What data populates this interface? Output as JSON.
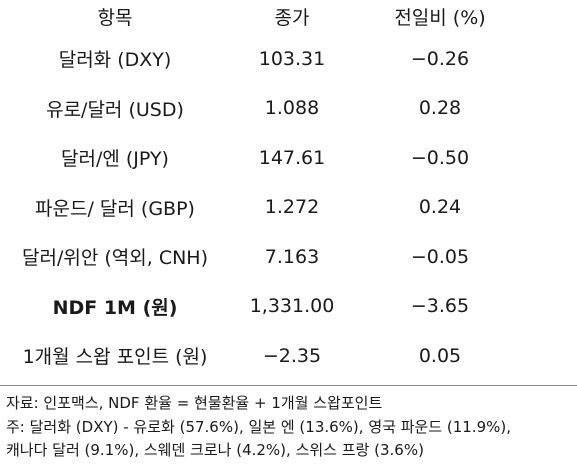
{
  "headers": [
    "항목",
    "종가",
    "전일비 (%)"
  ],
  "rows": [
    {
      "item": "달러화 (DXY)",
      "close": "103.31",
      "change": "−0.26",
      "bold": false
    },
    {
      "item": "유로/달러 (USD)",
      "close": "1.088",
      "change": "0.28",
      "bold": false
    },
    {
      "item": "달러/엔 (JPY)",
      "close": "147.61",
      "change": "−0.50",
      "bold": false
    },
    {
      "item": "파운드/ 달러 (GBP)",
      "close": "1.272",
      "change": "0.24",
      "bold": false
    },
    {
      "item": "달러/위안 (역외, CNH)",
      "close": "7.163",
      "change": "−0.05",
      "bold": false
    },
    {
      "item": "NDF 1M (원)",
      "close": "1,331.00",
      "change": "−3.65",
      "bold": true
    },
    {
      "item": "1개월 스왑 포인트 (원)",
      "close": "−2.35",
      "change": "0.05",
      "bold": false
    }
  ],
  "notes": {
    "line1": "자료: 인포맥스, NDF 환율 = 현물환율 + 1개월 스왑포인트",
    "line2": "주: 달러화 (DXY) - 유로화 (57.6%), 일본 엔 (13.6%), 영국 파운드 (11.9%),",
    "line3": "캐나다 달러 (9.1%), 스웨덴 크로나 (4.2%), 스위스 프랑 (3.6%)"
  }
}
